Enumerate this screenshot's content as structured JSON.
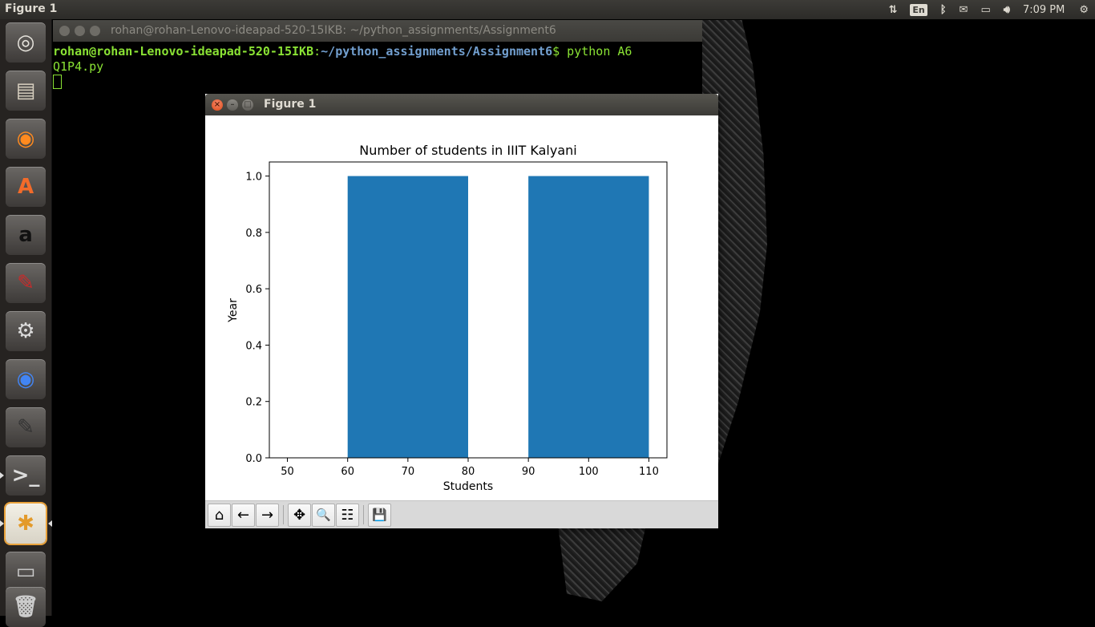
{
  "topbar": {
    "title": "Figure 1",
    "indicators": {
      "keyboard": "En",
      "clock": "7:09 PM"
    }
  },
  "launcher": {
    "items": [
      {
        "name": "ubuntu-dash-icon"
      },
      {
        "name": "files-icon"
      },
      {
        "name": "firefox-icon"
      },
      {
        "name": "software-center-icon"
      },
      {
        "name": "amazon-icon"
      },
      {
        "name": "document-viewer-icon"
      },
      {
        "name": "system-settings-icon"
      },
      {
        "name": "chrome-icon"
      },
      {
        "name": "text-editor-icon"
      },
      {
        "name": "terminal-icon"
      },
      {
        "name": "python-figure-icon"
      },
      {
        "name": "drive-icon"
      },
      {
        "name": "trash-icon"
      }
    ]
  },
  "terminal": {
    "title": "rohan@rohan-Lenovo-ideapad-520-15IKB: ~/python_assignments/Assignment6",
    "prompt_user": "rohan@rohan-Lenovo-ideapad-520-15IKB",
    "prompt_sep": ":",
    "prompt_path": "~/python_assignments/Assignment6",
    "prompt_dollar": "$",
    "command_line1": " python A6",
    "command_line2": "Q1P4.py"
  },
  "figure": {
    "window_title": "Figure 1",
    "toolbar": {
      "home": "⌂",
      "back": "←",
      "forward": "→",
      "pan": "✥",
      "zoom": "🔍",
      "configure": "☷",
      "save": "💾"
    }
  },
  "chart_data": {
    "type": "bar",
    "title": "Number of students in IIIT Kalyani",
    "xlabel": "Students",
    "ylabel": "Year",
    "bar_color": "#1f77b4",
    "bars": [
      {
        "x_start": 60,
        "x_end": 80,
        "value": 1.0
      },
      {
        "x_start": 90,
        "x_end": 110,
        "value": 1.0
      }
    ],
    "xlim": [
      47,
      113
    ],
    "ylim": [
      0,
      1.05
    ],
    "xticks": [
      50,
      60,
      70,
      80,
      90,
      100,
      110
    ],
    "xtick_labels": [
      "50",
      "60",
      "70",
      "80",
      "90",
      "100",
      "110"
    ],
    "yticks": [
      0.0,
      0.2,
      0.4,
      0.6,
      0.8,
      1.0
    ],
    "ytick_labels": [
      "0.0",
      "0.2",
      "0.4",
      "0.6",
      "0.8",
      "1.0"
    ],
    "grid": false
  }
}
